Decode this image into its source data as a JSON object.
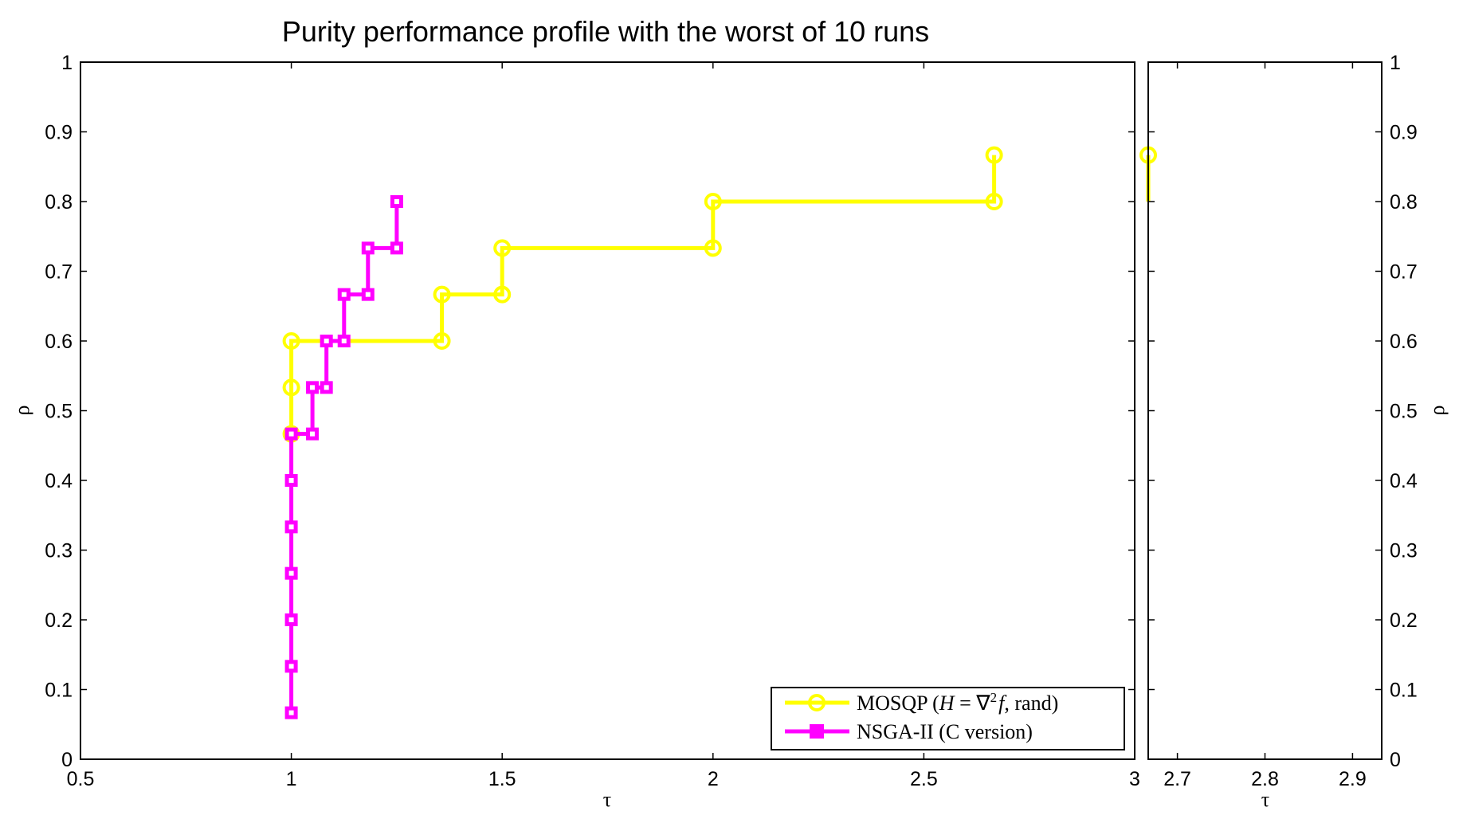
{
  "chart_data": {
    "type": "line",
    "step": true,
    "title": "Purity performance profile with the worst of 10 runs",
    "grid": false,
    "legend_position": "bottom-right",
    "series": [
      {
        "name": "MOSQP (H = ∇²f, rand)",
        "color": "#ffff00",
        "marker": "circle",
        "points": [
          [
            1.0,
            0.4667
          ],
          [
            1.0,
            0.5333
          ],
          [
            1.0,
            0.6
          ],
          [
            1.3571,
            0.6
          ],
          [
            1.3571,
            0.6667
          ],
          [
            1.5,
            0.6667
          ],
          [
            1.5,
            0.7333
          ],
          [
            2.0,
            0.7333
          ],
          [
            2.0,
            0.8
          ],
          [
            2.6667,
            0.8
          ],
          [
            2.6667,
            0.8667
          ]
        ]
      },
      {
        "name": "NSGA-II (C version)",
        "color": "#ff00ff",
        "marker": "square",
        "points": [
          [
            1.0,
            0.0667
          ],
          [
            1.0,
            0.1333
          ],
          [
            1.0,
            0.2
          ],
          [
            1.0,
            0.2667
          ],
          [
            1.0,
            0.3333
          ],
          [
            1.0,
            0.4
          ],
          [
            1.0,
            0.4667
          ],
          [
            1.05,
            0.4667
          ],
          [
            1.05,
            0.5333
          ],
          [
            1.0833,
            0.5333
          ],
          [
            1.0833,
            0.6
          ],
          [
            1.125,
            0.6
          ],
          [
            1.125,
            0.6667
          ],
          [
            1.1818,
            0.6667
          ],
          [
            1.1818,
            0.7333
          ],
          [
            1.25,
            0.7333
          ],
          [
            1.25,
            0.8
          ]
        ]
      }
    ],
    "panels": [
      {
        "id": "main",
        "xlim": [
          0.5,
          3
        ],
        "ylim": [
          0,
          1
        ],
        "xticks": [
          "0.5",
          "1",
          "1.5",
          "2",
          "2.5",
          "3"
        ],
        "yticks": [
          "0",
          "0.1",
          "0.2",
          "0.3",
          "0.4",
          "0.5",
          "0.6",
          "0.7",
          "0.8",
          "0.9",
          "1"
        ],
        "xlabel": "τ",
        "ylabel": "ρ",
        "ytick_side": "left"
      },
      {
        "id": "tail",
        "xlim": [
          2.6667,
          2.9333
        ],
        "ylim": [
          0,
          1
        ],
        "xticks": [
          "2.7",
          "2.8",
          "2.9"
        ],
        "yticks": [
          "0",
          "0.1",
          "0.2",
          "0.3",
          "0.4",
          "0.5",
          "0.6",
          "0.7",
          "0.8",
          "0.9",
          "1"
        ],
        "xlabel": "τ",
        "ylabel": "ρ",
        "ytick_side": "right",
        "series": [
          {
            "color": "#ffff00",
            "marker": "circle",
            "points": [
              [
                2.6667,
                0.8
              ],
              [
                2.6667,
                0.8667
              ]
            ],
            "marker_indices": [
              1
            ]
          }
        ]
      }
    ]
  },
  "legend": {
    "items": [
      {
        "label_main": "MOSQP (",
        "label_var": "H",
        "label_op": " = ∇",
        "label_sup": "2",
        "label_f": "f",
        "label_end": ", rand)"
      },
      {
        "label_main": "NSGA-II (C version)"
      }
    ]
  }
}
